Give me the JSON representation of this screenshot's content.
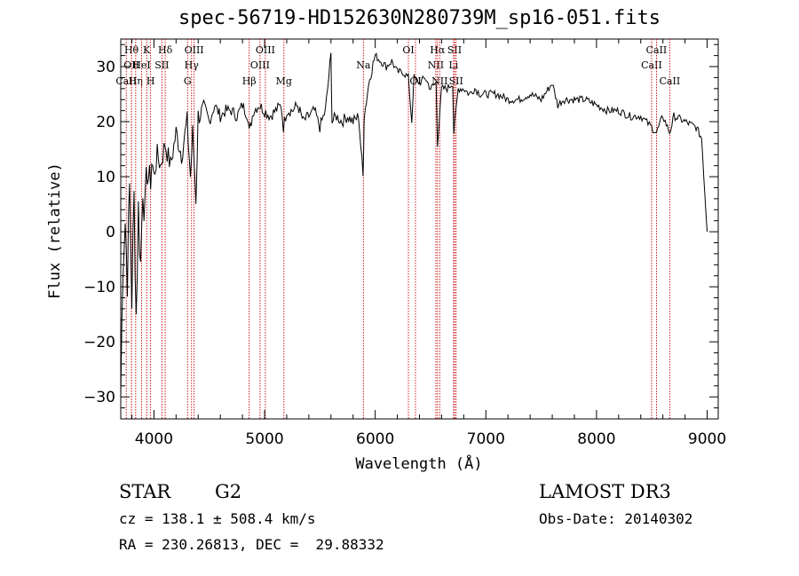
{
  "chart_data": {
    "type": "line",
    "title": "spec-56719-HD152630N280739M_sp16-051.fits",
    "xlabel": "Wavelength (Å)",
    "ylabel": "Flux (relative)",
    "xlim": [
      3700,
      9100
    ],
    "ylim": [
      -34,
      35
    ],
    "xticks": [
      4000,
      5000,
      6000,
      7000,
      8000,
      9000
    ],
    "yticks": [
      -30,
      -20,
      -10,
      0,
      10,
      20,
      30
    ],
    "series": [
      {
        "name": "flux",
        "points": [
          [
            3700,
            -30
          ],
          [
            3720,
            -5
          ],
          [
            3740,
            2
          ],
          [
            3760,
            -8
          ],
          [
            3780,
            8
          ],
          [
            3800,
            -12
          ],
          [
            3820,
            6
          ],
          [
            3840,
            -15
          ],
          [
            3860,
            4
          ],
          [
            3880,
            -6
          ],
          [
            3900,
            9
          ],
          [
            3920,
            3
          ],
          [
            3940,
            12
          ],
          [
            3960,
            8
          ],
          [
            3980,
            13
          ],
          [
            4000,
            10
          ],
          [
            4030,
            14
          ],
          [
            4060,
            12
          ],
          [
            4100,
            16
          ],
          [
            4150,
            12
          ],
          [
            4200,
            18
          ],
          [
            4250,
            14
          ],
          [
            4300,
            20
          ],
          [
            4330,
            10
          ],
          [
            4350,
            18
          ],
          [
            4380,
            6
          ],
          [
            4400,
            21
          ],
          [
            4450,
            22
          ],
          [
            4500,
            20
          ],
          [
            4550,
            23
          ],
          [
            4600,
            21
          ],
          [
            4650,
            22
          ],
          [
            4700,
            22
          ],
          [
            4750,
            21
          ],
          [
            4800,
            23
          ],
          [
            4850,
            21
          ],
          [
            4861,
            18
          ],
          [
            4900,
            22
          ],
          [
            4950,
            23
          ],
          [
            5000,
            22
          ],
          [
            5050,
            21
          ],
          [
            5100,
            22
          ],
          [
            5150,
            23
          ],
          [
            5170,
            19
          ],
          [
            5200,
            22
          ],
          [
            5250,
            22
          ],
          [
            5300,
            23
          ],
          [
            5350,
            20
          ],
          [
            5400,
            21
          ],
          [
            5450,
            22
          ],
          [
            5500,
            19
          ],
          [
            5550,
            22
          ],
          [
            5600,
            32
          ],
          [
            5610,
            20
          ],
          [
            5650,
            21
          ],
          [
            5700,
            20
          ],
          [
            5750,
            21
          ],
          [
            5800,
            20
          ],
          [
            5850,
            21
          ],
          [
            5890,
            10
          ],
          [
            5900,
            21
          ],
          [
            5950,
            28
          ],
          [
            6000,
            32
          ],
          [
            6050,
            31
          ],
          [
            6100,
            30
          ],
          [
            6150,
            31
          ],
          [
            6200,
            29
          ],
          [
            6250,
            29
          ],
          [
            6300,
            28
          ],
          [
            6330,
            20
          ],
          [
            6350,
            28
          ],
          [
            6400,
            27
          ],
          [
            6450,
            28
          ],
          [
            6500,
            26
          ],
          [
            6550,
            27
          ],
          [
            6563,
            16
          ],
          [
            6600,
            26
          ],
          [
            6650,
            26
          ],
          [
            6700,
            27
          ],
          [
            6710,
            18
          ],
          [
            6750,
            26
          ],
          [
            6800,
            26
          ],
          [
            6850,
            25
          ],
          [
            6900,
            26
          ],
          [
            6950,
            25
          ],
          [
            7000,
            25
          ],
          [
            7100,
            25
          ],
          [
            7200,
            24
          ],
          [
            7300,
            24
          ],
          [
            7400,
            25
          ],
          [
            7500,
            24
          ],
          [
            7600,
            27
          ],
          [
            7650,
            23
          ],
          [
            7700,
            24
          ],
          [
            7800,
            24
          ],
          [
            7900,
            24
          ],
          [
            8000,
            23
          ],
          [
            8100,
            22
          ],
          [
            8200,
            22
          ],
          [
            8300,
            21
          ],
          [
            8400,
            21
          ],
          [
            8498,
            19
          ],
          [
            8542,
            18
          ],
          [
            8600,
            21
          ],
          [
            8662,
            18
          ],
          [
            8700,
            21
          ],
          [
            8800,
            20
          ],
          [
            8900,
            19
          ],
          [
            8950,
            17
          ],
          [
            9000,
            0
          ]
        ]
      }
    ],
    "lines": [
      {
        "x": 3750,
        "label": "CaII",
        "row": 3
      },
      {
        "x": 3797,
        "label": "Hθ",
        "row": 1
      },
      {
        "x": 3797,
        "label": "OII",
        "row": 2
      },
      {
        "x": 3835,
        "label": "Hη",
        "row": 3
      },
      {
        "x": 3889,
        "label": "HeI",
        "row": 2
      },
      {
        "x": 3934,
        "label": "K",
        "row": 1
      },
      {
        "x": 3970,
        "label": "H",
        "row": 3
      },
      {
        "x": 4072,
        "label": "SII",
        "row": 2
      },
      {
        "x": 4102,
        "label": "Hδ",
        "row": 1
      },
      {
        "x": 4304,
        "label": "G",
        "row": 3
      },
      {
        "x": 4340,
        "label": "Hγ",
        "row": 2
      },
      {
        "x": 4363,
        "label": "OIII",
        "row": 1
      },
      {
        "x": 4861,
        "label": "Hβ",
        "row": 3
      },
      {
        "x": 4959,
        "label": "OIII",
        "row": 2
      },
      {
        "x": 5007,
        "label": "OIII",
        "row": 1
      },
      {
        "x": 5175,
        "label": "Mg",
        "row": 3
      },
      {
        "x": 5893,
        "label": "Na",
        "row": 2
      },
      {
        "x": 6300,
        "label": "OI",
        "row": 1
      },
      {
        "x": 6364,
        "label": "OI",
        "row": 3
      },
      {
        "x": 6548,
        "label": "NII",
        "row": 2
      },
      {
        "x": 6563,
        "label": "Hα",
        "row": 1
      },
      {
        "x": 6583,
        "label": "NII",
        "row": 3
      },
      {
        "x": 6708,
        "label": "Li",
        "row": 2
      },
      {
        "x": 6717,
        "label": "SII",
        "row": 1
      },
      {
        "x": 6731,
        "label": "SII",
        "row": 3
      },
      {
        "x": 8498,
        "label": "CaII",
        "row": 2
      },
      {
        "x": 8542,
        "label": "CaII",
        "row": 1
      },
      {
        "x": 8662,
        "label": "CaII",
        "row": 3
      }
    ]
  },
  "info": {
    "class": "STAR",
    "subclass": "G2",
    "cz": "cz = 138.1 ± 508.4 km/s",
    "coords": "RA = 230.26813, DEC =  29.88332",
    "survey": "LAMOST DR3",
    "obs_date": "Obs-Date: 20140302"
  }
}
